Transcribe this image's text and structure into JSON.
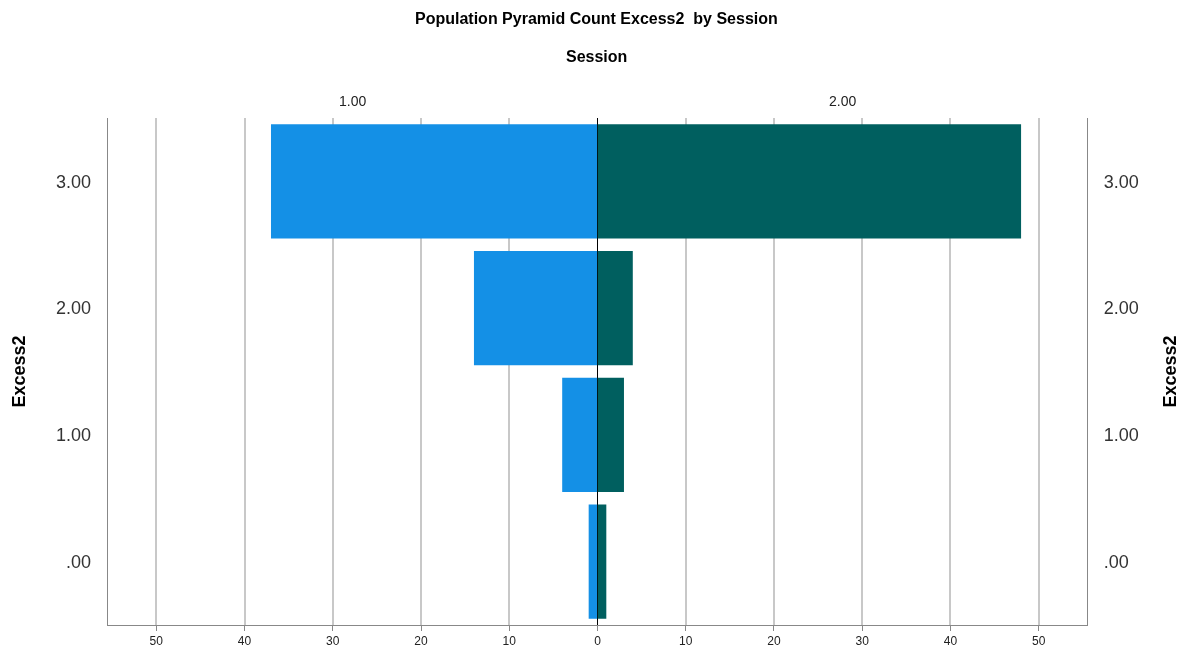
{
  "chart_data": [
    {
      "type": "bar",
      "orientation": "horizontal",
      "title": "Population Pyramid Count Excess2  by Session",
      "subtitle": "Session",
      "ylabel": "Excess2",
      "categories": [
        "3.00",
        "2.00",
        "1.00",
        ".00"
      ],
      "series": [
        {
          "name": "1.00",
          "color": "#1490e6",
          "values": [
            37,
            14,
            4,
            1
          ]
        }
      ],
      "xlim": [
        55.5,
        0
      ],
      "xticks": [
        50,
        40,
        30,
        20,
        10
      ],
      "grid": "x"
    },
    {
      "type": "bar",
      "orientation": "horizontal",
      "y2label": "Excess2",
      "categories": [
        "3.00",
        "2.00",
        "1.00",
        ".00"
      ],
      "series": [
        {
          "name": "2.00",
          "color": "#005f5f",
          "values": [
            48,
            4,
            3,
            1
          ]
        }
      ],
      "xlim": [
        0,
        55.5
      ],
      "xticks": [
        0,
        10,
        20,
        30,
        40,
        50
      ],
      "grid": "x"
    }
  ]
}
